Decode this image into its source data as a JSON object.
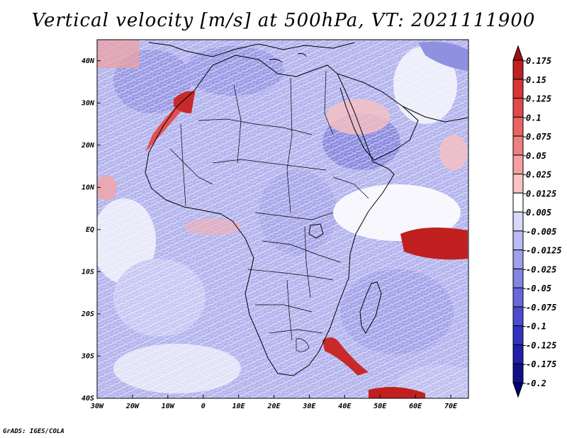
{
  "title": "Vertical velocity [m/s] at 500hPa, VT: 2021111900",
  "credit": "GrADS: IGES/COLA",
  "chart_data": {
    "type": "heatmap",
    "variable": "Vertical velocity",
    "units": "m/s",
    "level": "500hPa",
    "valid_time": "2021111900",
    "x_ticks": [
      {
        "value": -30,
        "label": "30W"
      },
      {
        "value": -20,
        "label": "20W"
      },
      {
        "value": -10,
        "label": "10W"
      },
      {
        "value": 0,
        "label": "0"
      },
      {
        "value": 10,
        "label": "10E"
      },
      {
        "value": 20,
        "label": "20E"
      },
      {
        "value": 30,
        "label": "30E"
      },
      {
        "value": 40,
        "label": "40E"
      },
      {
        "value": 50,
        "label": "50E"
      },
      {
        "value": 60,
        "label": "60E"
      },
      {
        "value": 70,
        "label": "70E"
      }
    ],
    "y_ticks": [
      {
        "value": 40,
        "label": "40N"
      },
      {
        "value": 30,
        "label": "30N"
      },
      {
        "value": 20,
        "label": "20N"
      },
      {
        "value": 10,
        "label": "10N"
      },
      {
        "value": 0,
        "label": "EQ"
      },
      {
        "value": -10,
        "label": "10S"
      },
      {
        "value": -20,
        "label": "20S"
      },
      {
        "value": -30,
        "label": "30S"
      },
      {
        "value": -40,
        "label": "40S"
      }
    ],
    "xlim": [
      -30,
      75
    ],
    "ylim": [
      -40,
      45
    ],
    "colorbar": {
      "levels": [
        "0.175",
        "0.15",
        "0.125",
        "0.1",
        "0.075",
        "0.05",
        "0.025",
        "0.0125",
        "0.005",
        "-0.005",
        "-0.0125",
        "-0.025",
        "-0.05",
        "-0.075",
        "-0.1",
        "-0.125",
        "-0.175",
        "-0.2"
      ],
      "colors": [
        "#a01010",
        "#c02020",
        "#d83535",
        "#e24a4a",
        "#ea6464",
        "#f08080",
        "#f5a0a0",
        "#f9c4c4",
        "#ffffff",
        "#d8d8f8",
        "#bcbcf2",
        "#a0a0ec",
        "#8484e4",
        "#6868dc",
        "#4c4cd0",
        "#3232c0",
        "#2020a8",
        "#101088",
        "#000070"
      ]
    }
  }
}
